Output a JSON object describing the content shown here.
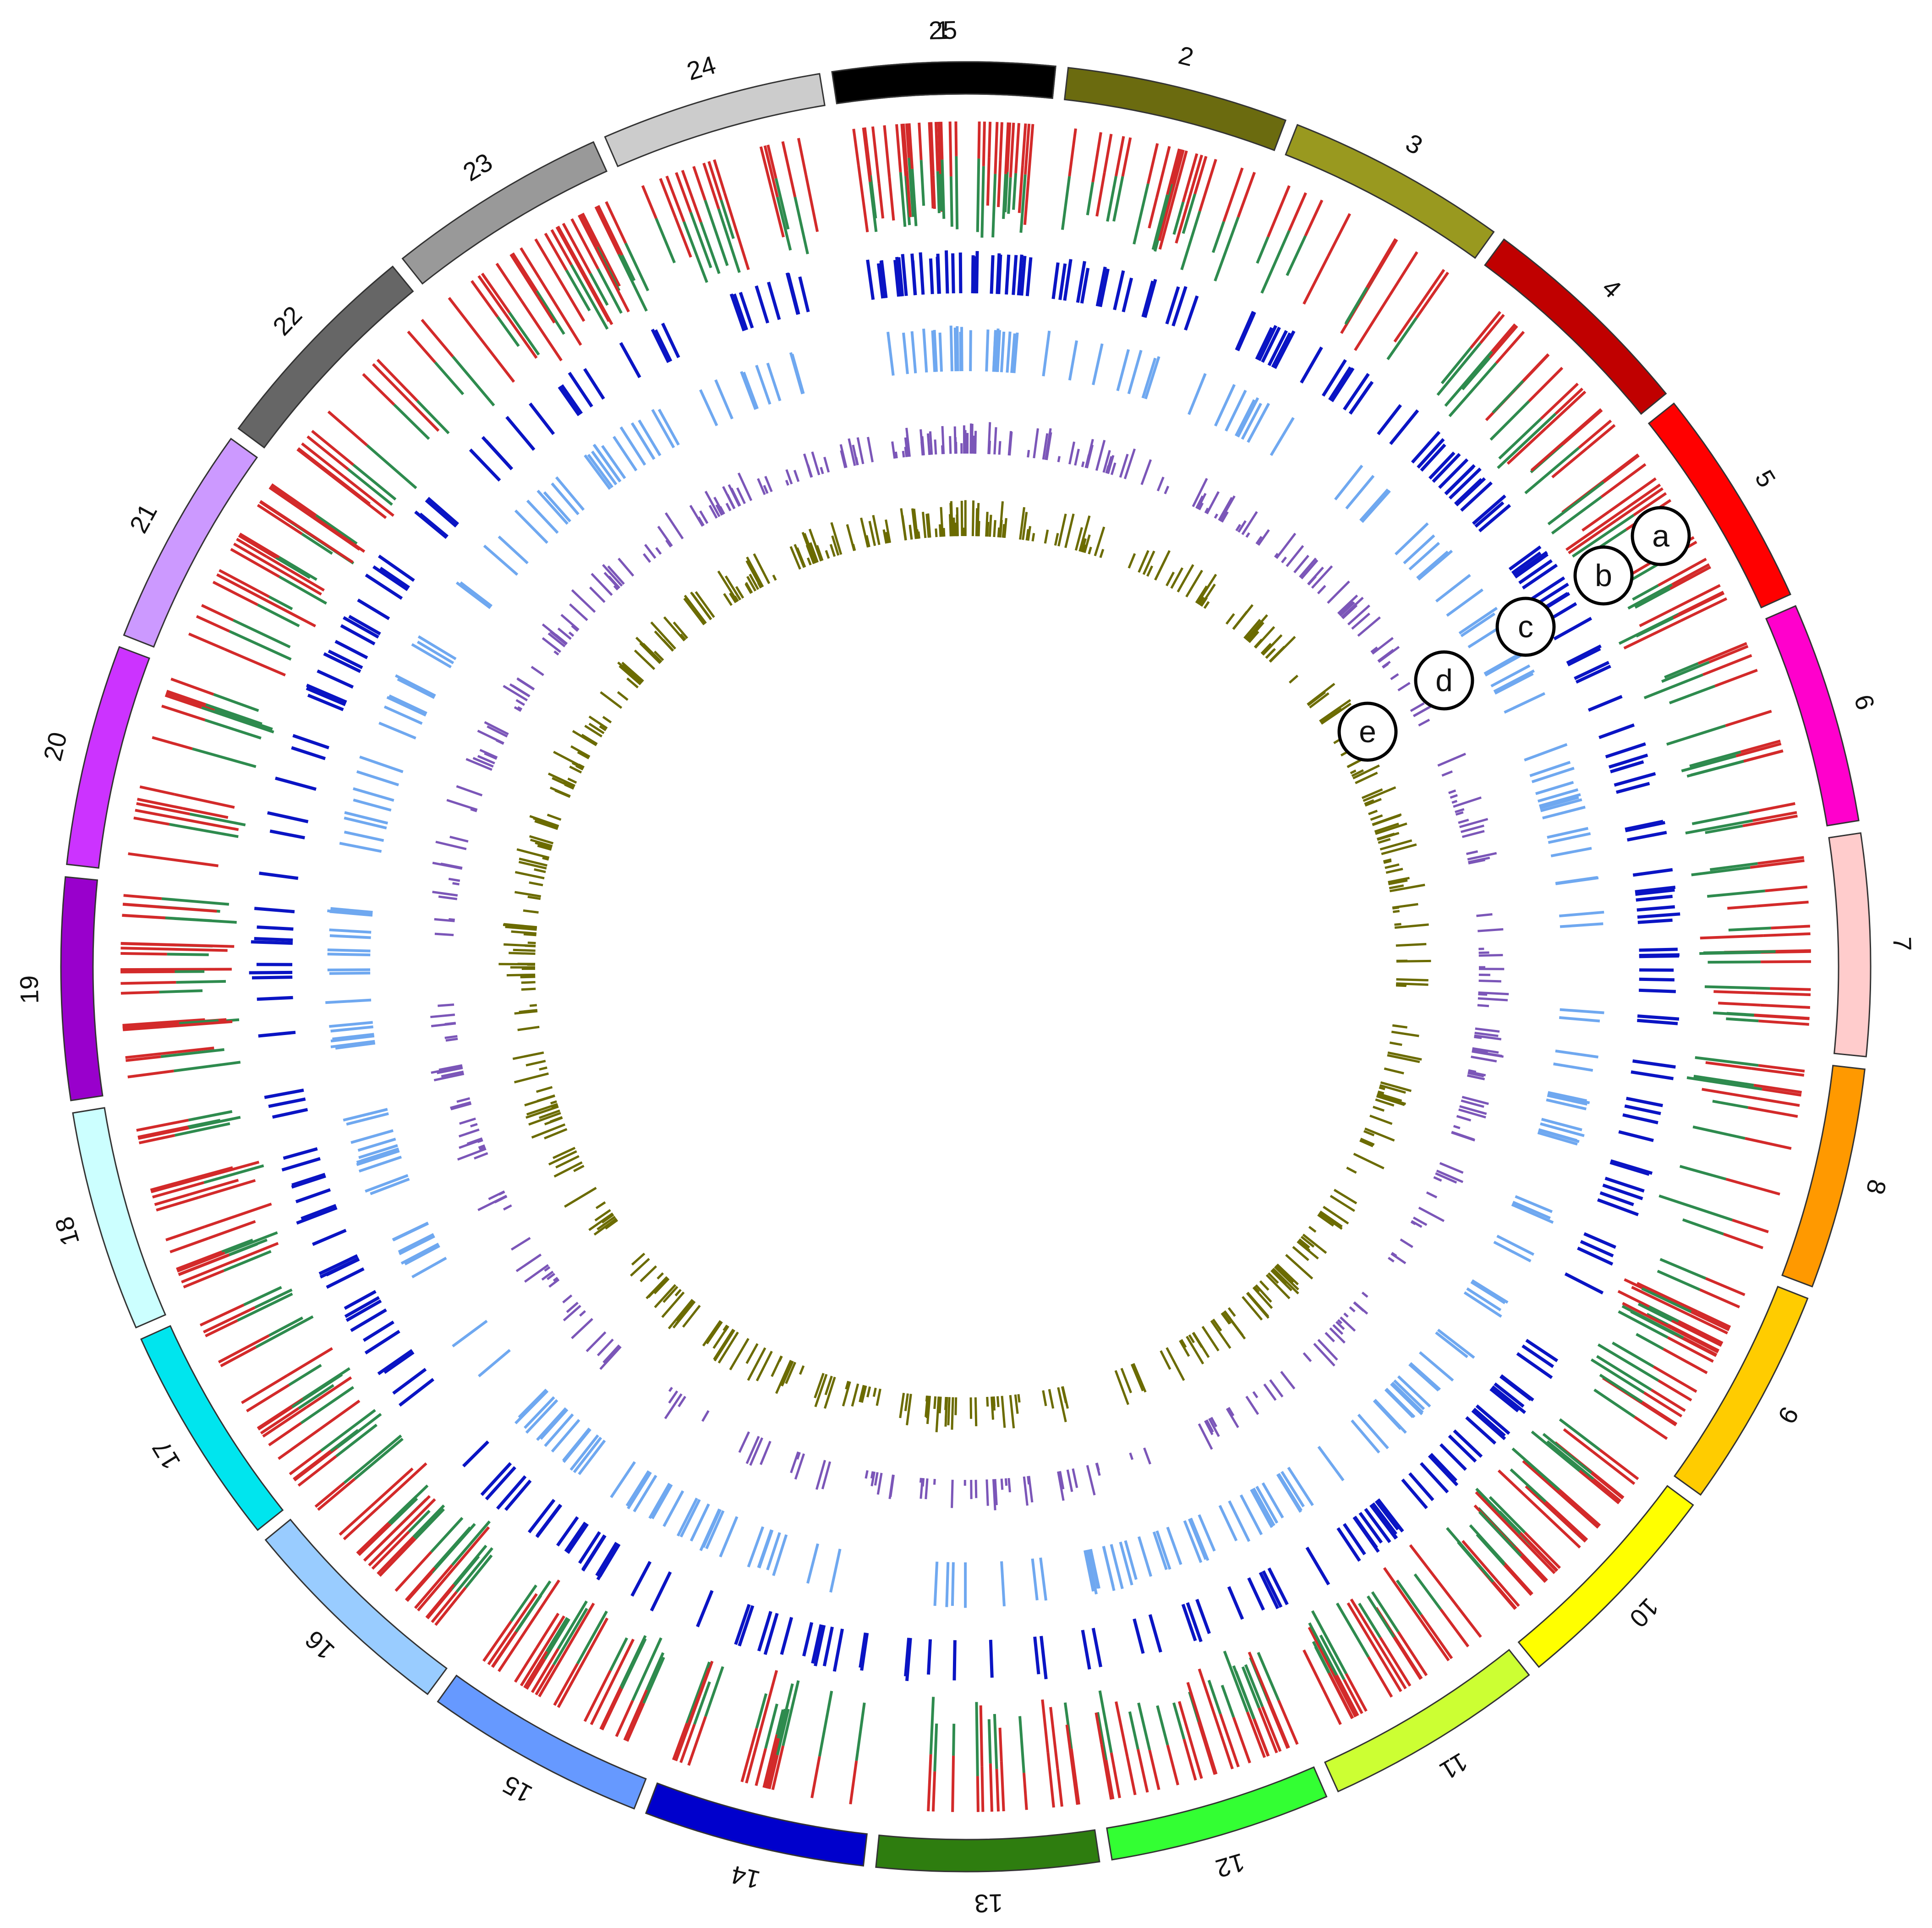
{
  "figure": {
    "chromosomes": [
      {
        "label": "1",
        "color": "#996515",
        "angle_span": 14.2
      },
      {
        "label": "2",
        "color": "#6b6b0f",
        "angle_span": 14.2
      },
      {
        "label": "3",
        "color": "#99991f",
        "angle_span": 14.2
      },
      {
        "label": "4",
        "color": "#c00000",
        "angle_span": 14.2
      },
      {
        "label": "5",
        "color": "#ff0000",
        "angle_span": 14.2
      },
      {
        "label": "6",
        "color": "#ff00cc",
        "angle_span": 14.2
      },
      {
        "label": "7",
        "color": "#ffcccc",
        "angle_span": 14.2
      },
      {
        "label": "8",
        "color": "#ff9900",
        "angle_span": 14.2
      },
      {
        "label": "9",
        "color": "#ffcc00",
        "angle_span": 14.2
      },
      {
        "label": "10",
        "color": "#ffff00",
        "angle_span": 14.2
      },
      {
        "label": "11",
        "color": "#ccff33",
        "angle_span": 14.2
      },
      {
        "label": "12",
        "color": "#33ff33",
        "angle_span": 14.2
      },
      {
        "label": "13",
        "color": "#2e7d0f",
        "angle_span": 14.2
      },
      {
        "label": "14",
        "color": "#0000cc",
        "angle_span": 14.2
      },
      {
        "label": "15",
        "color": "#6699ff",
        "angle_span": 14.2
      },
      {
        "label": "16",
        "color": "#99ccff",
        "angle_span": 14.2
      },
      {
        "label": "17",
        "color": "#00e5ee",
        "angle_span": 14.2
      },
      {
        "label": "18",
        "color": "#ccffff",
        "angle_span": 14.2
      },
      {
        "label": "19",
        "color": "#9900cc",
        "angle_span": 14.2
      },
      {
        "label": "20",
        "color": "#cc33ff",
        "angle_span": 14.2
      },
      {
        "label": "21",
        "color": "#cc99ff",
        "angle_span": 14.2
      },
      {
        "label": "22",
        "color": "#666666",
        "angle_span": 14.2
      },
      {
        "label": "23",
        "color": "#999999",
        "angle_span": 14.2
      },
      {
        "label": "24",
        "color": "#cccccc",
        "angle_span": 14.2
      },
      {
        "label": "25",
        "color": "#000000",
        "angle_span": 14.2
      }
    ],
    "tracks": [
      {
        "id": "a",
        "colors": [
          "#d32a2a",
          "#2e8b4e"
        ]
      },
      {
        "id": "b",
        "colors": [
          "#0a14c4"
        ]
      },
      {
        "id": "c",
        "colors": [
          "#6fa8f0"
        ]
      },
      {
        "id": "d",
        "colors": [
          "#7b56b8"
        ]
      },
      {
        "id": "e",
        "colors": [
          "#6b6b00"
        ]
      }
    ]
  }
}
